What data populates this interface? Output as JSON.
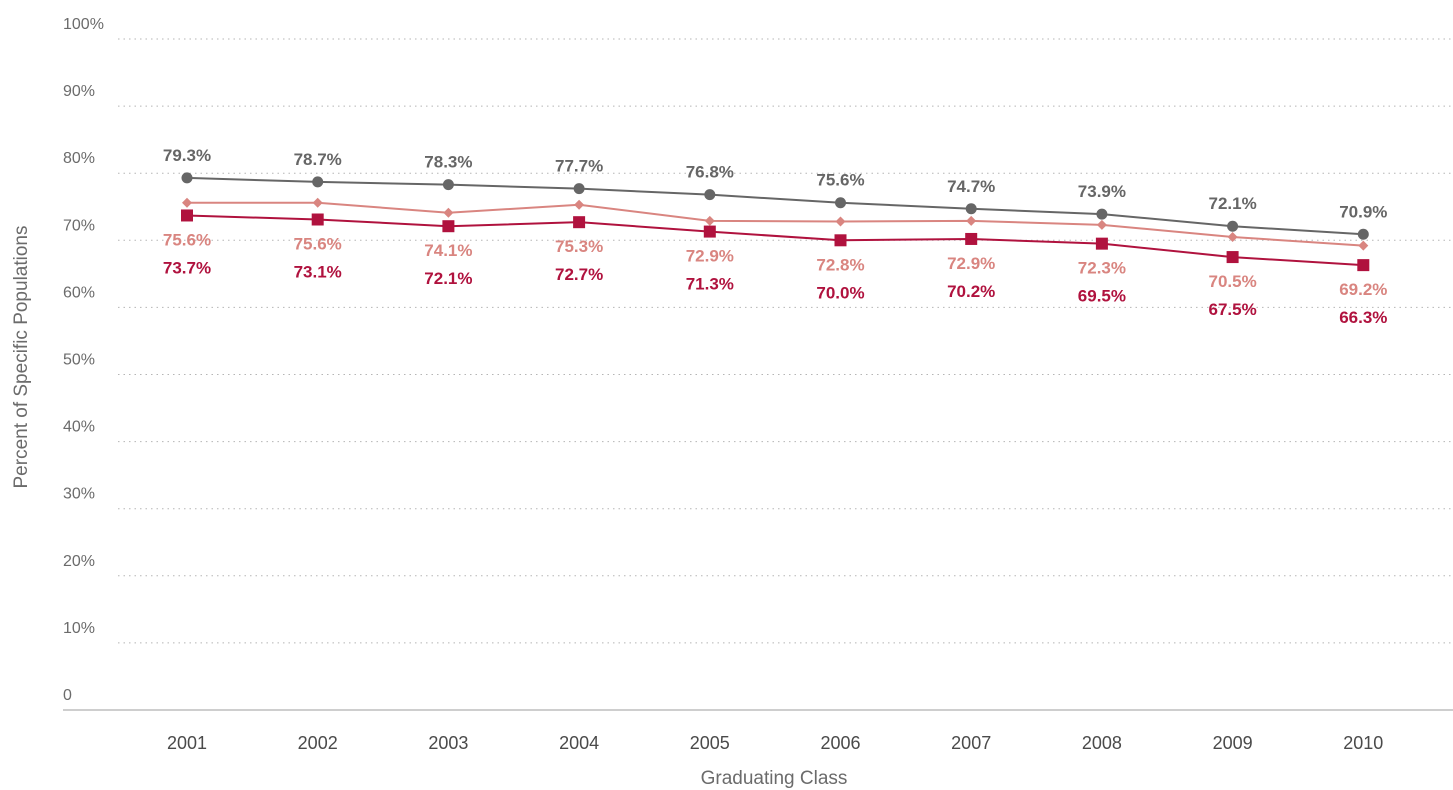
{
  "chart_data": {
    "type": "line",
    "title": "",
    "xlabel": "Graduating Class",
    "ylabel": "Percent of Specific Populations",
    "x": [
      "2001",
      "2002",
      "2003",
      "2004",
      "2005",
      "2006",
      "2007",
      "2008",
      "2009",
      "2010"
    ],
    "ylim": [
      0,
      100
    ],
    "yticks": [
      0,
      10,
      20,
      30,
      40,
      50,
      60,
      70,
      80,
      90,
      100
    ],
    "ytick_labels": [
      "0",
      "10%",
      "20%",
      "30%",
      "40%",
      "50%",
      "60%",
      "70%",
      "80%",
      "90%",
      "100%"
    ],
    "grid": "horizontal dotted",
    "legend": "none",
    "series": [
      {
        "values": [
          79.3,
          78.7,
          78.3,
          77.7,
          76.8,
          75.6,
          74.7,
          73.9,
          72.1,
          70.9
        ],
        "labels": [
          "79.3%",
          "78.7%",
          "78.3%",
          "77.7%",
          "76.8%",
          "75.6%",
          "74.7%",
          "73.9%",
          "72.1%",
          "70.9%"
        ],
        "color": "#666666",
        "marker": "circle",
        "label_position": "above"
      },
      {
        "values": [
          75.6,
          75.6,
          74.1,
          75.3,
          72.9,
          72.8,
          72.9,
          72.3,
          70.5,
          69.2
        ],
        "labels": [
          "75.6%",
          "75.6%",
          "74.1%",
          "75.3%",
          "72.9%",
          "72.8%",
          "72.9%",
          "72.3%",
          "70.5%",
          "69.2%"
        ],
        "color": "#d98580",
        "marker": "diamond",
        "label_position": "below"
      },
      {
        "values": [
          73.7,
          73.1,
          72.1,
          72.7,
          71.3,
          70.0,
          70.2,
          69.5,
          67.5,
          66.3
        ],
        "labels": [
          "73.7%",
          "73.1%",
          "72.1%",
          "72.7%",
          "71.3%",
          "70.0%",
          "70.2%",
          "69.5%",
          "67.5%",
          "66.3%"
        ],
        "color": "#b0123e",
        "marker": "square",
        "label_position": "below"
      }
    ]
  }
}
